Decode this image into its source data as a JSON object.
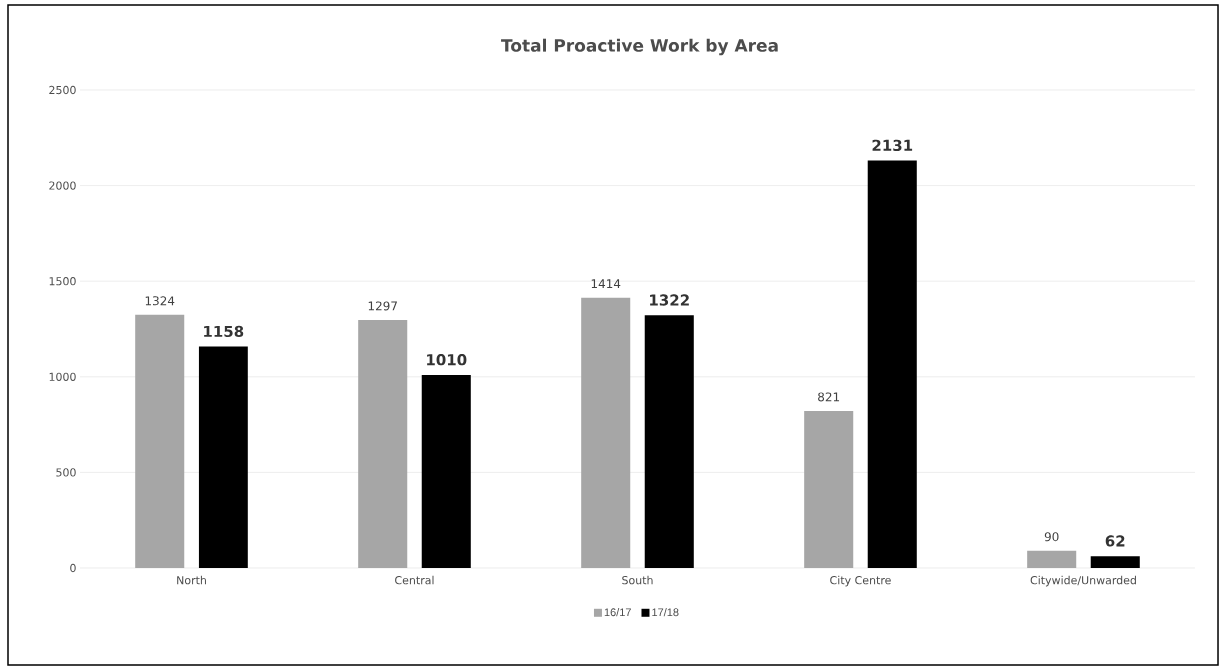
{
  "chart_data": {
    "type": "bar",
    "title": "Total Proactive Work by Area",
    "categories": [
      "North",
      "Central",
      "South",
      "City Centre",
      "Citywide/Unwarded"
    ],
    "series": [
      {
        "name": "16/17",
        "color": "#a6a6a6",
        "values": [
          1324,
          1297,
          1414,
          821,
          90
        ]
      },
      {
        "name": "17/18",
        "color": "#000000",
        "values": [
          1158,
          1010,
          1322,
          2131,
          62
        ]
      }
    ],
    "ylim": [
      0,
      2500
    ],
    "yticks": [
      0,
      500,
      1000,
      1500,
      2000,
      2500
    ],
    "grid": "y",
    "legend": "bottom",
    "data_labels": true
  }
}
